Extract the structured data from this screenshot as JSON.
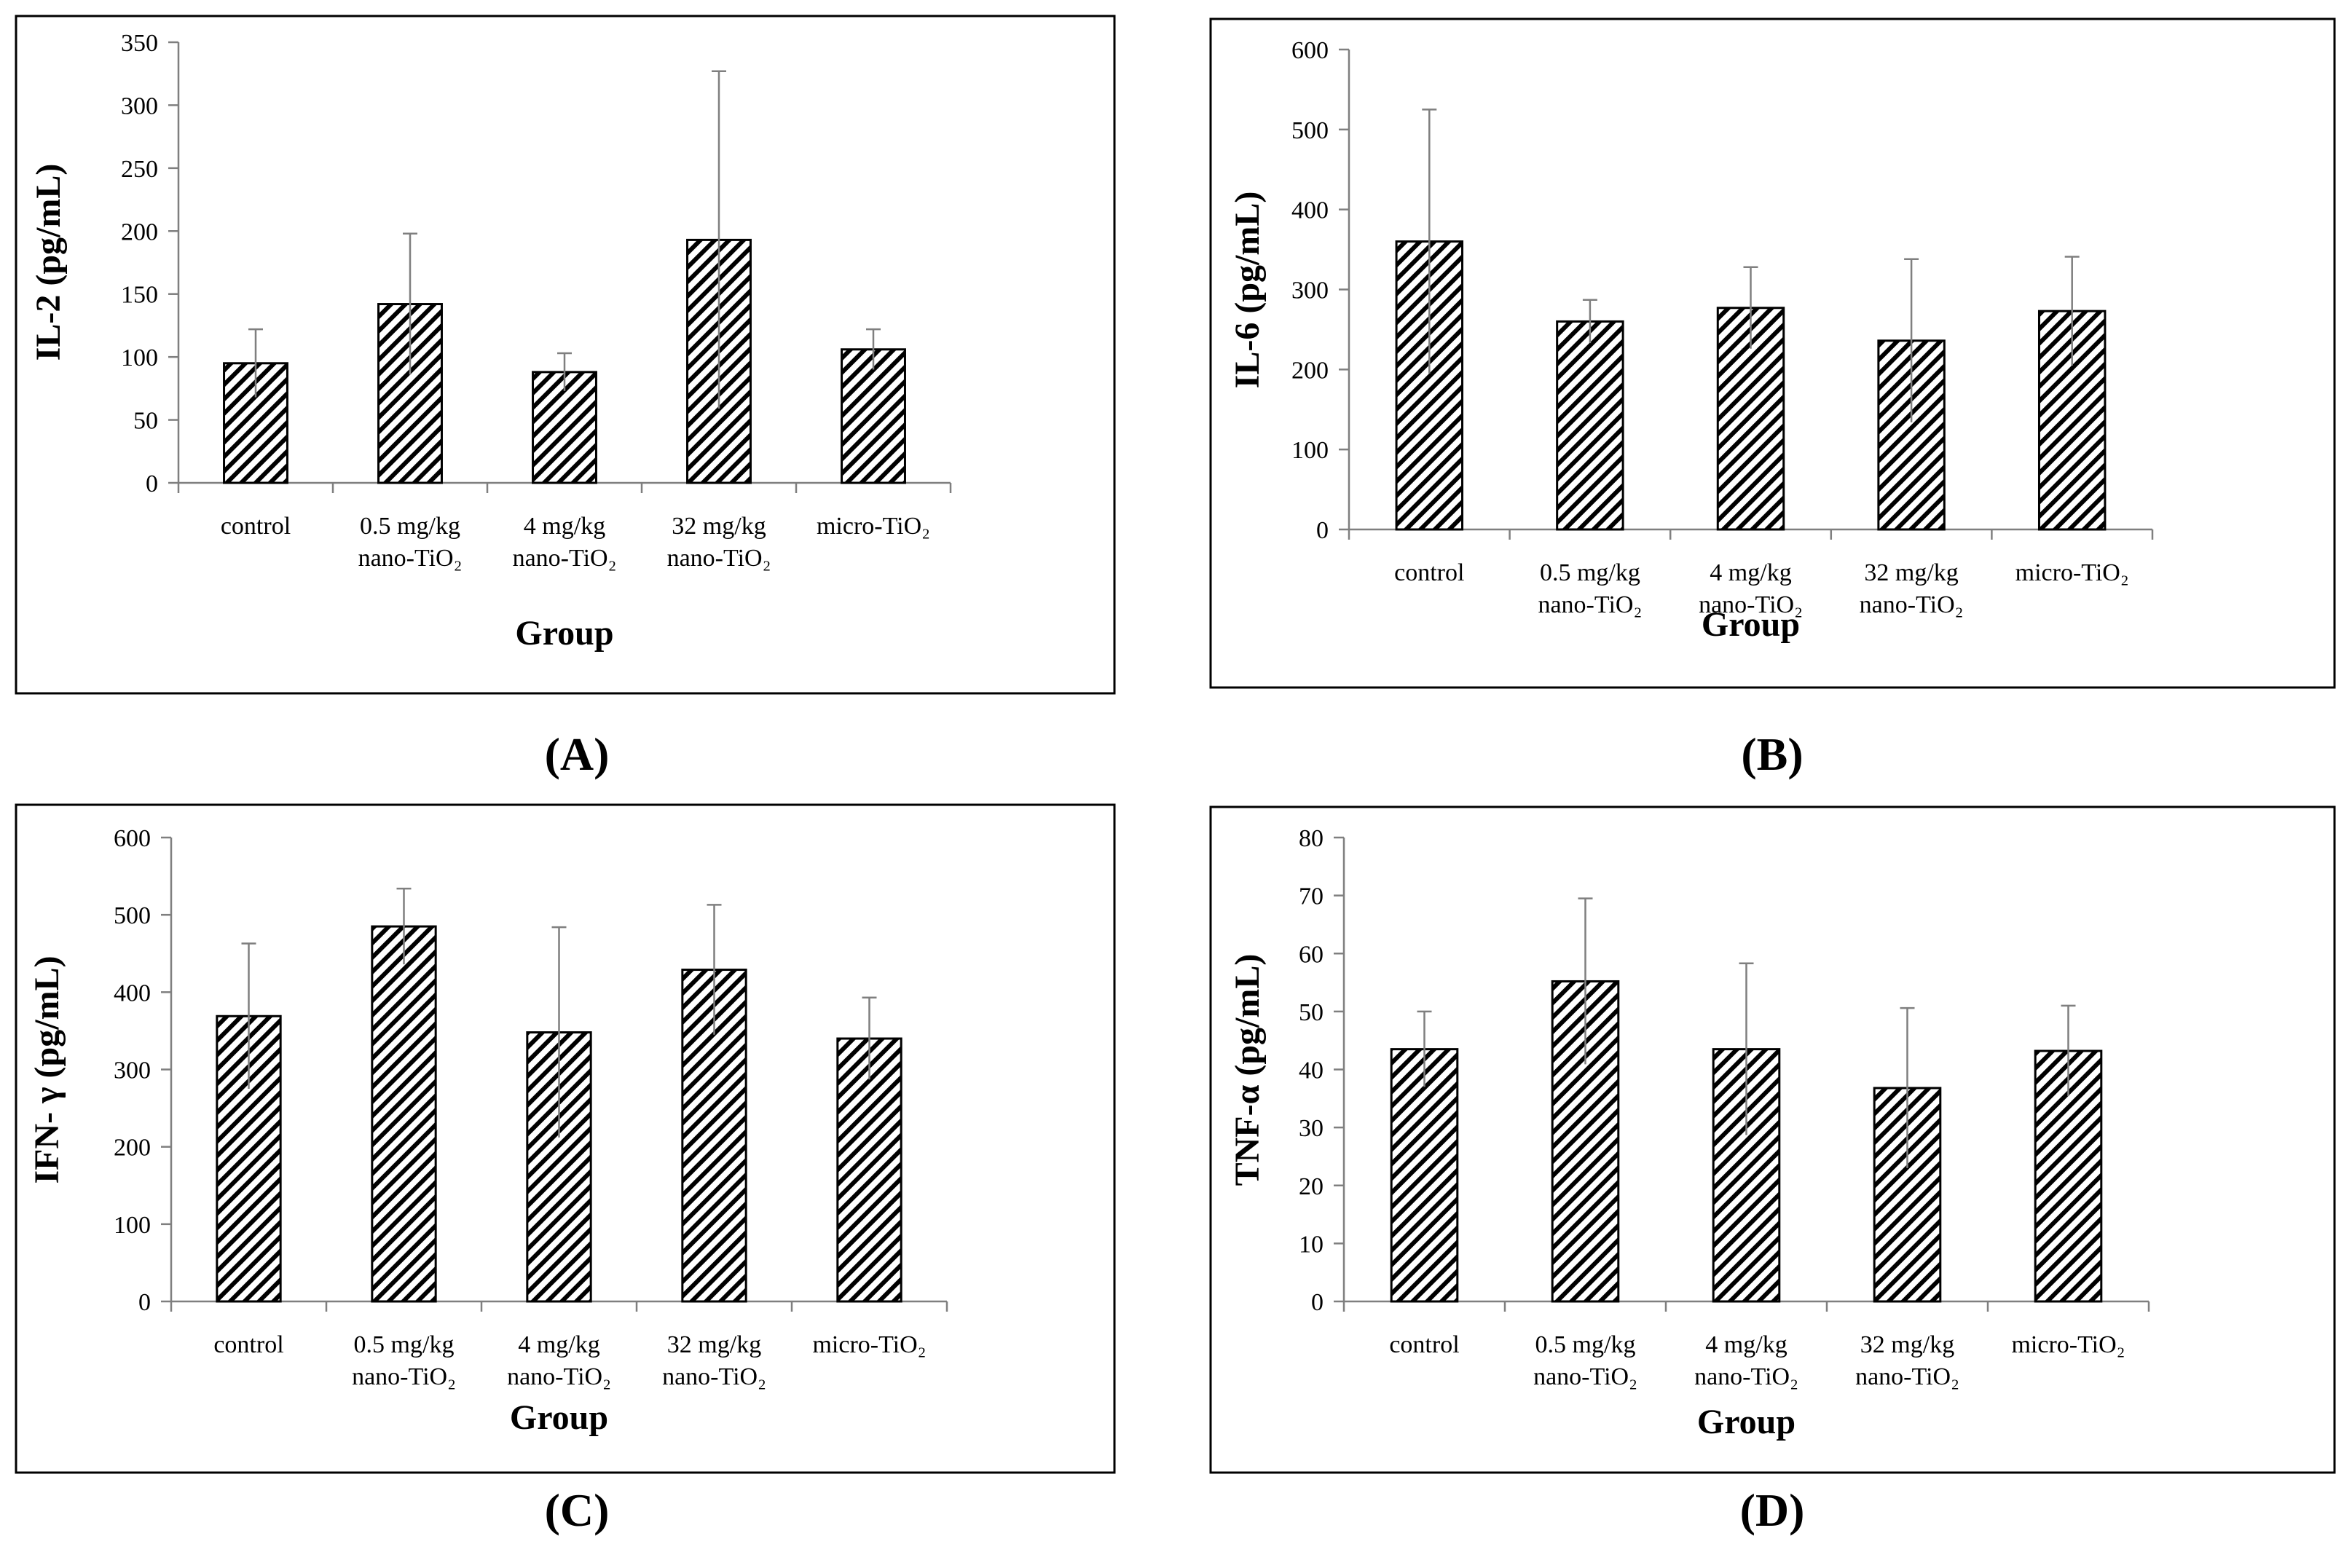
{
  "chart_data": [
    {
      "type": "bar",
      "panel": "A",
      "panel_label": "(A)",
      "xlabel": "Group",
      "ylabel": "IL-2 (pg/mL)",
      "ylim": [
        0,
        350
      ],
      "yticks": [
        0,
        50,
        100,
        150,
        200,
        250,
        300,
        350
      ],
      "categories": [
        {
          "line1": "control",
          "line2": ""
        },
        {
          "line1": "0.5 mg/kg",
          "line2": "nano-TiO₂"
        },
        {
          "line1": "4 mg/kg",
          "line2": "nano-TiO₂"
        },
        {
          "line1": "32 mg/kg",
          "line2": "nano-TiO₂"
        },
        {
          "line1": "micro-TiO₂",
          "line2": ""
        }
      ],
      "values": [
        95,
        142,
        88,
        193,
        106
      ],
      "errors": [
        27,
        56,
        15,
        134,
        16
      ],
      "bar_pattern": "diagonal-hatch",
      "grid": false
    },
    {
      "type": "bar",
      "panel": "B",
      "panel_label": "(B)",
      "xlabel": "Group",
      "ylabel": "IL-6 (pg/mL)",
      "ylim": [
        0,
        600
      ],
      "yticks": [
        0,
        100,
        200,
        300,
        400,
        500,
        600
      ],
      "categories": [
        {
          "line1": "control",
          "line2": ""
        },
        {
          "line1": "0.5 mg/kg",
          "line2": "nano-TiO₂"
        },
        {
          "line1": "4 mg/kg",
          "line2": "nano-TiO₂"
        },
        {
          "line1": "32 mg/kg",
          "line2": "nano-TiO₂"
        },
        {
          "line1": "micro-TiO₂",
          "line2": ""
        }
      ],
      "values": [
        360,
        260,
        277,
        236,
        273
      ],
      "errors": [
        165,
        27,
        51,
        102,
        68
      ],
      "bar_pattern": "diagonal-hatch",
      "grid": false
    },
    {
      "type": "bar",
      "panel": "C",
      "panel_label": "(C)",
      "xlabel": "Group",
      "ylabel": "IFN- γ (pg/mL)",
      "ylim": [
        0,
        600
      ],
      "yticks": [
        0,
        100,
        200,
        300,
        400,
        500,
        600
      ],
      "categories": [
        {
          "line1": "control",
          "line2": ""
        },
        {
          "line1": "0.5 mg/kg",
          "line2": "nano-TiO₂"
        },
        {
          "line1": "4 mg/kg",
          "line2": "nano-TiO₂"
        },
        {
          "line1": "32 mg/kg",
          "line2": "nano-TiO₂"
        },
        {
          "line1": "micro-TiO₂",
          "line2": ""
        }
      ],
      "values": [
        369,
        485,
        348,
        429,
        340
      ],
      "errors": [
        94,
        49,
        136,
        84,
        53
      ],
      "bar_pattern": "diagonal-hatch",
      "grid": false
    },
    {
      "type": "bar",
      "panel": "D",
      "panel_label": "(D)",
      "xlabel": "Group",
      "ylabel": "TNF-α (pg/mL)",
      "ylim": [
        0,
        80
      ],
      "yticks": [
        0,
        10,
        20,
        30,
        40,
        50,
        60,
        70,
        80
      ],
      "categories": [
        {
          "line1": "control",
          "line2": ""
        },
        {
          "line1": "0.5 mg/kg",
          "line2": "nano-TiO₂"
        },
        {
          "line1": "4 mg/kg",
          "line2": "nano-TiO₂"
        },
        {
          "line1": "32 mg/kg",
          "line2": "nano-TiO₂"
        },
        {
          "line1": "micro-TiO₂",
          "line2": ""
        }
      ],
      "values": [
        43.5,
        55.2,
        43.5,
        36.8,
        43.2
      ],
      "errors": [
        6.5,
        14.3,
        14.8,
        13.8,
        7.8
      ],
      "bar_pattern": "diagonal-hatch",
      "grid": false
    }
  ],
  "colors": {
    "axis": "#7f7f7f",
    "error_bar": "#7f7f7f",
    "bar_stroke": "#000000",
    "hatch": "#000000",
    "frame": "#000000",
    "background": "#ffffff"
  }
}
